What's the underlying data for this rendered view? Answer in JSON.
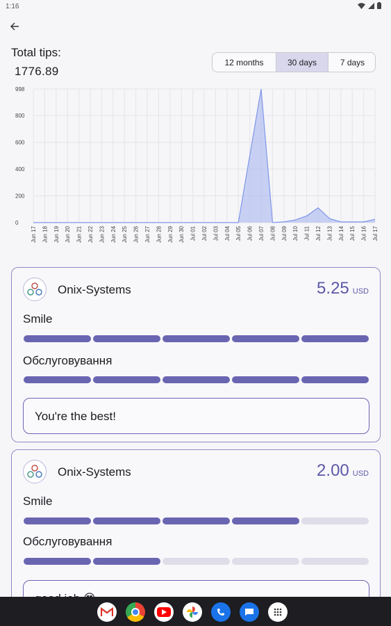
{
  "status": {
    "time": "1:16"
  },
  "header": {
    "back_icon": "arrow-left-icon"
  },
  "summary": {
    "label": "Total tips:",
    "value": "1776.89"
  },
  "periods": [
    {
      "label": "12 months",
      "active": false
    },
    {
      "label": "30 days",
      "active": true
    },
    {
      "label": "7 days",
      "active": false
    }
  ],
  "chart_data": {
    "type": "area",
    "y_ticks": [
      "0",
      "200",
      "400",
      "600",
      "800",
      "998"
    ],
    "ylim": [
      0,
      998
    ],
    "x": [
      "Jun 17",
      "Jun 18",
      "Jun 19",
      "Jun 20",
      "Jun 21",
      "Jun 22",
      "Jun 23",
      "Jun 24",
      "Jun 25",
      "Jun 26",
      "Jun 27",
      "Jun 28",
      "Jun 29",
      "Jun 30",
      "Jul 01",
      "Jul 02",
      "Jul 03",
      "Jul 04",
      "Jul 05",
      "Jul 06",
      "Jul 07",
      "Jul 08",
      "Jul 09",
      "Jul 10",
      "Jul 11",
      "Jul 12",
      "Jul 13",
      "Jul 14",
      "Jul 15",
      "Jul 16",
      "Jul 17"
    ],
    "values": [
      0,
      0,
      0,
      0,
      0,
      0,
      0,
      0,
      0,
      0,
      0,
      0,
      0,
      0,
      0,
      0,
      0,
      0,
      0,
      500,
      998,
      0,
      5,
      20,
      50,
      110,
      30,
      5,
      5,
      5,
      25
    ],
    "grid": true,
    "color": "#a9b8f0"
  },
  "tips": [
    {
      "name": "Onix-Systems",
      "amount": "5.25",
      "currency": "USD",
      "metrics": [
        {
          "label": "Smile",
          "rating": 5
        },
        {
          "label": "Обслуговування",
          "rating": 5
        }
      ],
      "comment": "You're the best!"
    },
    {
      "name": "Onix-Systems",
      "amount": "2.00",
      "currency": "USD",
      "metrics": [
        {
          "label": "Smile",
          "rating": 4
        },
        {
          "label": "Обслуговування",
          "rating": 2
        }
      ],
      "comment": "good job 😍"
    }
  ],
  "dock": [
    "gmail-icon",
    "chrome-icon",
    "youtube-icon",
    "photos-icon",
    "phone-icon",
    "messages-icon",
    "apps-icon"
  ],
  "accent": "#5d58a5"
}
